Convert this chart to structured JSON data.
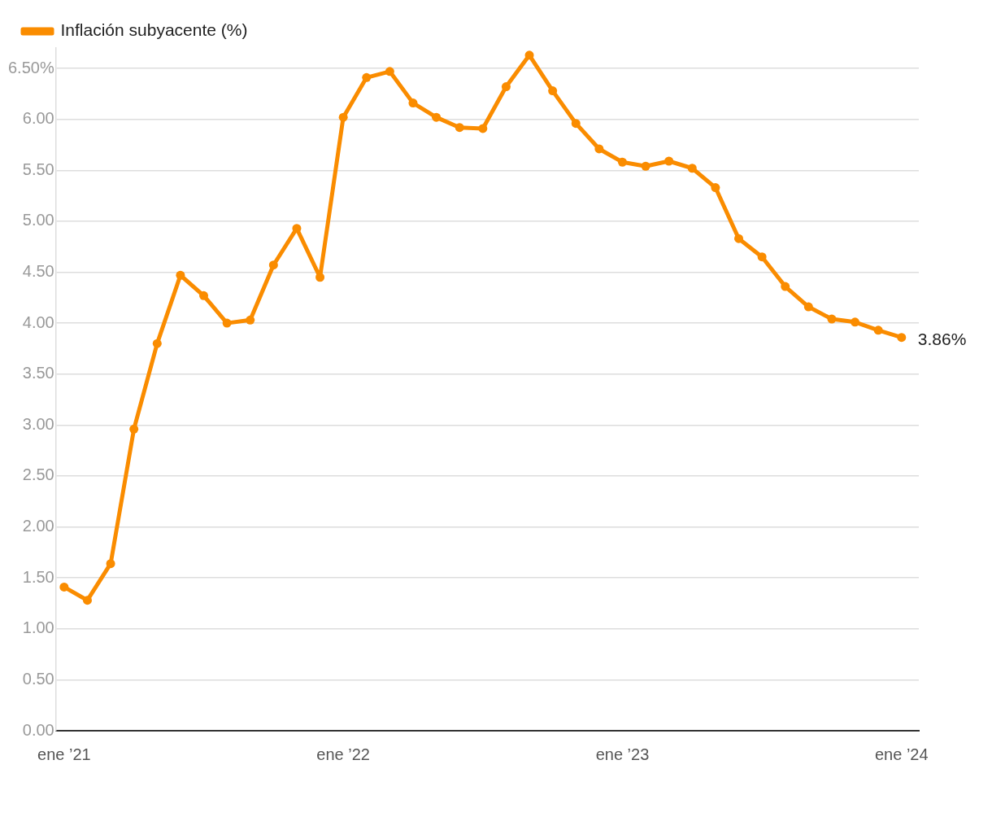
{
  "chart_data": {
    "type": "line",
    "x": [
      "2021-01",
      "2021-02",
      "2021-03",
      "2021-04",
      "2021-05",
      "2021-06",
      "2021-07",
      "2021-08",
      "2021-09",
      "2021-10",
      "2021-11",
      "2021-12",
      "2022-01",
      "2022-02",
      "2022-03",
      "2022-04",
      "2022-05",
      "2022-06",
      "2022-07",
      "2022-08",
      "2022-09",
      "2022-10",
      "2022-11",
      "2022-12",
      "2023-01",
      "2023-02",
      "2023-03",
      "2023-04",
      "2023-05",
      "2023-06",
      "2023-07",
      "2023-08",
      "2023-09",
      "2023-10",
      "2023-11",
      "2023-12",
      "2024-01"
    ],
    "series": [
      {
        "name": "Inflación subyacente (%)",
        "color": "#fa8c00",
        "values": [
          1.41,
          1.28,
          1.64,
          2.96,
          3.8,
          4.47,
          4.27,
          4.0,
          4.03,
          4.57,
          4.93,
          4.45,
          6.02,
          6.41,
          6.47,
          6.16,
          6.02,
          5.92,
          5.91,
          6.32,
          6.63,
          6.28,
          5.96,
          5.71,
          5.58,
          5.54,
          5.59,
          5.52,
          5.33,
          4.83,
          4.65,
          4.36,
          4.16,
          4.04,
          4.01,
          3.93,
          3.86
        ]
      }
    ],
    "xlim": [
      "2020-12-21",
      "2024-01-24"
    ],
    "xticks": [
      {
        "value": "2021-01",
        "label": "ene ’21"
      },
      {
        "value": "2022-01",
        "label": "ene ’22"
      },
      {
        "value": "2023-01",
        "label": "ene ’23"
      },
      {
        "value": "2024-01",
        "label": "ene ’24"
      }
    ],
    "ylim": [
      0,
      6.7
    ],
    "yticks": [
      {
        "value": 0,
        "label": "0.00"
      },
      {
        "value": 0.5,
        "label": "0.50"
      },
      {
        "value": 1,
        "label": "1.00"
      },
      {
        "value": 1.5,
        "label": "1.50"
      },
      {
        "value": 2,
        "label": "2.00"
      },
      {
        "value": 2.5,
        "label": "2.50"
      },
      {
        "value": 3,
        "label": "3.00"
      },
      {
        "value": 3.5,
        "label": "3.50"
      },
      {
        "value": 4,
        "label": "4.00"
      },
      {
        "value": 4.5,
        "label": "4.50"
      },
      {
        "value": 5,
        "label": "5.00"
      },
      {
        "value": 5.5,
        "label": "5.50"
      },
      {
        "value": 6,
        "label": "6.00"
      },
      {
        "value": 6.5,
        "label": "6.50%"
      }
    ],
    "grid": "y",
    "legend": "top left",
    "marker": "circle",
    "line_style": "solid",
    "annotations": [
      {
        "text": "3.86%",
        "x": "2024-01",
        "y": 3.86
      }
    ]
  }
}
